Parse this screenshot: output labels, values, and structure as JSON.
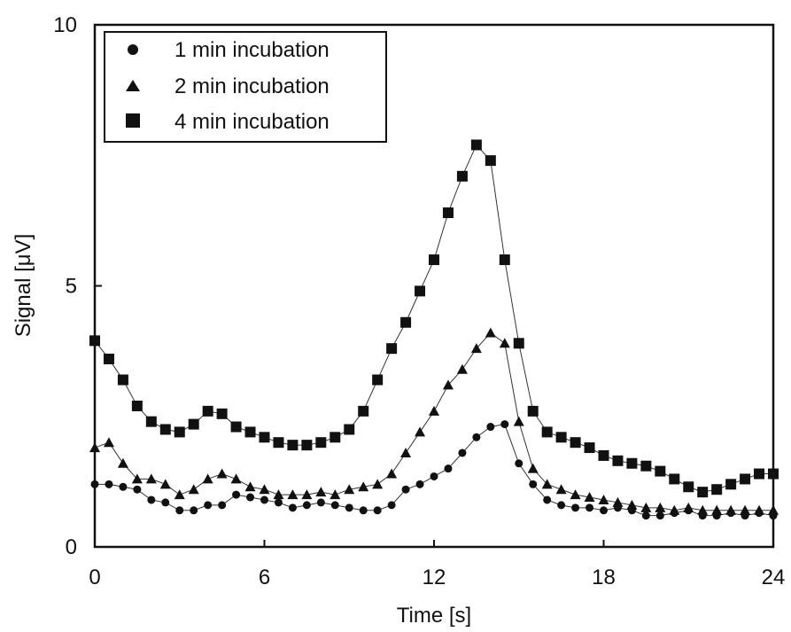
{
  "chart_data": {
    "type": "scatter",
    "xlabel": "Time [s]",
    "ylabel": "Signal [μV]",
    "xlim": [
      0,
      24
    ],
    "ylim": [
      0,
      10
    ],
    "xticks": [
      0,
      6,
      12,
      18,
      24
    ],
    "yticks": [
      0,
      5,
      10
    ],
    "x_tick_labels": [
      "0",
      "6",
      "12",
      "18",
      "24"
    ],
    "y_tick_labels": [
      "0",
      "5",
      "10"
    ],
    "legend_position": "top-left",
    "grid": false,
    "series": [
      {
        "name": "1 min incubation",
        "marker": "circle",
        "x": [
          0,
          0.5,
          1,
          1.5,
          2,
          2.5,
          3,
          3.5,
          4,
          4.5,
          5,
          5.5,
          6,
          6.5,
          7,
          7.5,
          8,
          8.5,
          9,
          9.5,
          10,
          10.5,
          11,
          11.5,
          12,
          12.5,
          13,
          13.5,
          14,
          14.5,
          15,
          15.5,
          16,
          16.5,
          17,
          17.5,
          18,
          18.5,
          19,
          19.5,
          20,
          20.5,
          21,
          21.5,
          22,
          22.5,
          23,
          23.5,
          24
        ],
        "y": [
          1.2,
          1.2,
          1.15,
          1.1,
          0.9,
          0.85,
          0.7,
          0.7,
          0.8,
          0.8,
          1.0,
          0.95,
          0.9,
          0.85,
          0.75,
          0.8,
          0.85,
          0.8,
          0.75,
          0.7,
          0.7,
          0.8,
          1.1,
          1.2,
          1.35,
          1.5,
          1.8,
          2.1,
          2.3,
          2.35,
          1.6,
          1.2,
          0.9,
          0.8,
          0.75,
          0.75,
          0.7,
          0.75,
          0.7,
          0.6,
          0.6,
          0.65,
          0.7,
          0.6,
          0.6,
          0.65,
          0.6,
          0.65,
          0.6
        ]
      },
      {
        "name": "2 min incubation",
        "marker": "triangle",
        "x": [
          0,
          0.5,
          1,
          1.5,
          2,
          2.5,
          3,
          3.5,
          4,
          4.5,
          5,
          5.5,
          6,
          6.5,
          7,
          7.5,
          8,
          8.5,
          9,
          9.5,
          10,
          10.5,
          11,
          11.5,
          12,
          12.5,
          13,
          13.5,
          14,
          14.5,
          15,
          15.5,
          16,
          16.5,
          17,
          17.5,
          18,
          18.5,
          19,
          19.5,
          20,
          20.5,
          21,
          21.5,
          22,
          22.5,
          23,
          23.5,
          24
        ],
        "y": [
          1.9,
          2.0,
          1.6,
          1.3,
          1.3,
          1.2,
          1.0,
          1.1,
          1.3,
          1.4,
          1.3,
          1.15,
          1.1,
          1.0,
          1.0,
          1.0,
          1.05,
          1.0,
          1.1,
          1.15,
          1.2,
          1.4,
          1.8,
          2.2,
          2.6,
          3.1,
          3.4,
          3.8,
          4.1,
          3.9,
          2.4,
          1.5,
          1.2,
          1.1,
          1.0,
          0.95,
          0.9,
          0.85,
          0.8,
          0.75,
          0.75,
          0.7,
          0.75,
          0.7,
          0.7,
          0.7,
          0.7,
          0.7,
          0.7
        ]
      },
      {
        "name": "4 min incubation",
        "marker": "square",
        "x": [
          0,
          0.5,
          1,
          1.5,
          2,
          2.5,
          3,
          3.5,
          4,
          4.5,
          5,
          5.5,
          6,
          6.5,
          7,
          7.5,
          8,
          8.5,
          9,
          9.5,
          10,
          10.5,
          11,
          11.5,
          12,
          12.5,
          13,
          13.5,
          14,
          14.5,
          15,
          15.5,
          16,
          16.5,
          17,
          17.5,
          18,
          18.5,
          19,
          19.5,
          20,
          20.5,
          21,
          21.5,
          22,
          22.5,
          23,
          23.5,
          24
        ],
        "y": [
          3.95,
          3.6,
          3.2,
          2.7,
          2.4,
          2.25,
          2.2,
          2.35,
          2.6,
          2.55,
          2.3,
          2.2,
          2.1,
          2.0,
          1.95,
          1.95,
          2.0,
          2.1,
          2.25,
          2.6,
          3.2,
          3.8,
          4.3,
          4.9,
          5.5,
          6.4,
          7.1,
          7.7,
          7.4,
          5.5,
          3.9,
          2.6,
          2.2,
          2.1,
          2.0,
          1.9,
          1.75,
          1.65,
          1.6,
          1.55,
          1.45,
          1.3,
          1.15,
          1.05,
          1.1,
          1.2,
          1.3,
          1.4,
          1.4
        ]
      }
    ]
  }
}
